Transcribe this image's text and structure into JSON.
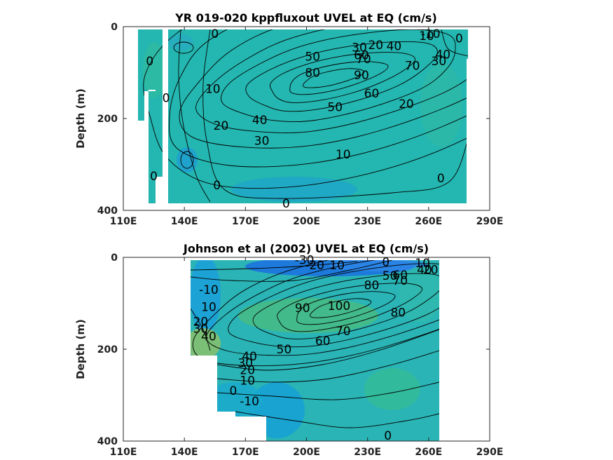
{
  "chart_data": [
    {
      "type": "heatmap",
      "title": "YR 019-020 kppfluxout UVEL at EQ (cm/s)",
      "xlabel": "",
      "ylabel": "Depth (m)",
      "xlim": [
        110,
        290
      ],
      "ylim": [
        400,
        0
      ],
      "x_ticks": [
        "110E",
        "140E",
        "170E",
        "200E",
        "230E",
        "260E",
        "290E"
      ],
      "y_ticks": [
        "0",
        "200",
        "400"
      ],
      "colormap": "parula",
      "core_max_cm_s": 90,
      "contour_labels": [
        {
          "text": "0",
          "lon": 155,
          "depth": 15
        },
        {
          "text": "-10",
          "lon": 261,
          "depth": 15
        },
        {
          "text": "0",
          "lon": 275,
          "depth": 25
        },
        {
          "text": "30",
          "lon": 226,
          "depth": 45
        },
        {
          "text": "20",
          "lon": 234,
          "depth": 40
        },
        {
          "text": "40",
          "lon": 243,
          "depth": 42
        },
        {
          "text": "10",
          "lon": 259,
          "depth": 20
        },
        {
          "text": "50",
          "lon": 203,
          "depth": 65
        },
        {
          "text": "60",
          "lon": 227,
          "depth": 62
        },
        {
          "text": "70",
          "lon": 228,
          "depth": 70
        },
        {
          "text": "40",
          "lon": 267,
          "depth": 60
        },
        {
          "text": "30",
          "lon": 265,
          "depth": 75
        },
        {
          "text": "0",
          "lon": 123,
          "depth": 75
        },
        {
          "text": "80",
          "lon": 203,
          "depth": 100
        },
        {
          "text": "90",
          "lon": 227,
          "depth": 105
        },
        {
          "text": "70",
          "lon": 252,
          "depth": 85
        },
        {
          "text": "0",
          "lon": 131,
          "depth": 155
        },
        {
          "text": "10",
          "lon": 154,
          "depth": 135
        },
        {
          "text": "60",
          "lon": 232,
          "depth": 145
        },
        {
          "text": "50",
          "lon": 214,
          "depth": 175
        },
        {
          "text": "20",
          "lon": 249,
          "depth": 168
        },
        {
          "text": "20",
          "lon": 158,
          "depth": 215
        },
        {
          "text": "40",
          "lon": 177,
          "depth": 203
        },
        {
          "text": "30",
          "lon": 178,
          "depth": 248
        },
        {
          "text": "10",
          "lon": 218,
          "depth": 278
        },
        {
          "text": "0",
          "lon": 125,
          "depth": 325
        },
        {
          "text": "0",
          "lon": 266,
          "depth": 330
        },
        {
          "text": "0",
          "lon": 156,
          "depth": 345
        },
        {
          "text": "0",
          "lon": 190,
          "depth": 385
        }
      ]
    },
    {
      "type": "heatmap",
      "title": "Johnson et al (2002) UVEL at EQ (cm/s)",
      "xlabel": "",
      "ylabel": "Depth (m)",
      "xlim": [
        110,
        290
      ],
      "ylim": [
        400,
        0
      ],
      "x_ticks": [
        "110E",
        "140E",
        "170E",
        "200E",
        "230E",
        "260E",
        "290E"
      ],
      "y_ticks": [
        "0",
        "200",
        "400"
      ],
      "colormap": "parula",
      "core_max_cm_s": 100,
      "contour_labels": [
        {
          "text": "-30",
          "lon": 199,
          "depth": 5
        },
        {
          "text": "-20",
          "lon": 204,
          "depth": 17
        },
        {
          "text": "10",
          "lon": 215,
          "depth": 17
        },
        {
          "text": "0",
          "lon": 239,
          "depth": 10
        },
        {
          "text": "10",
          "lon": 257,
          "depth": 12
        },
        {
          "text": "50",
          "lon": 241,
          "depth": 40
        },
        {
          "text": "60",
          "lon": 246,
          "depth": 38
        },
        {
          "text": "70",
          "lon": 246,
          "depth": 50
        },
        {
          "text": "40",
          "lon": 258,
          "depth": 27
        },
        {
          "text": "20",
          "lon": 261,
          "depth": 27
        },
        {
          "text": "80",
          "lon": 232,
          "depth": 60
        },
        {
          "text": "-10",
          "lon": 152,
          "depth": 70
        },
        {
          "text": "10",
          "lon": 152,
          "depth": 108
        },
        {
          "text": "20",
          "lon": 148,
          "depth": 140
        },
        {
          "text": "30",
          "lon": 148,
          "depth": 155
        },
        {
          "text": "40",
          "lon": 152,
          "depth": 172
        },
        {
          "text": "90",
          "lon": 198,
          "depth": 110
        },
        {
          "text": "100",
          "lon": 216,
          "depth": 105
        },
        {
          "text": "80",
          "lon": 245,
          "depth": 120
        },
        {
          "text": "70",
          "lon": 218,
          "depth": 160
        },
        {
          "text": "60",
          "lon": 208,
          "depth": 182
        },
        {
          "text": "50",
          "lon": 189,
          "depth": 200
        },
        {
          "text": "40",
          "lon": 172,
          "depth": 215
        },
        {
          "text": "30",
          "lon": 170,
          "depth": 230
        },
        {
          "text": "20",
          "lon": 171,
          "depth": 245
        },
        {
          "text": "10",
          "lon": 171,
          "depth": 268
        },
        {
          "text": "0",
          "lon": 164,
          "depth": 290
        },
        {
          "text": "-10",
          "lon": 172,
          "depth": 313
        },
        {
          "text": "0",
          "lon": 240,
          "depth": 388
        }
      ]
    }
  ]
}
